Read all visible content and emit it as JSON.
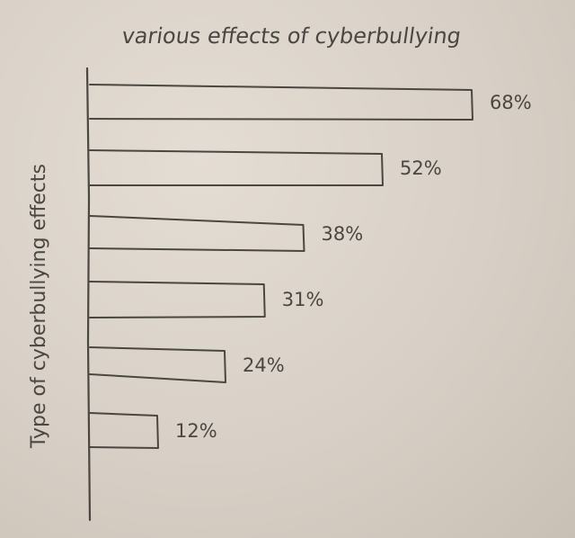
{
  "chart_data": {
    "type": "bar",
    "orientation": "horizontal",
    "title": "various effects of cyberbullying",
    "ylabel": "Type of cyberbullying effects",
    "xlabel": "",
    "categories": [
      "",
      "",
      "",
      "",
      "",
      ""
    ],
    "values": [
      68,
      52,
      38,
      31,
      24,
      12
    ],
    "value_labels": [
      "68%",
      "52%",
      "38%",
      "31%",
      "24%",
      "12%"
    ],
    "xlim": [
      0,
      75
    ],
    "grid": false,
    "legend": "none"
  },
  "colors": {
    "paper": "#d8d0c6",
    "pencil": "#4a4642"
  }
}
